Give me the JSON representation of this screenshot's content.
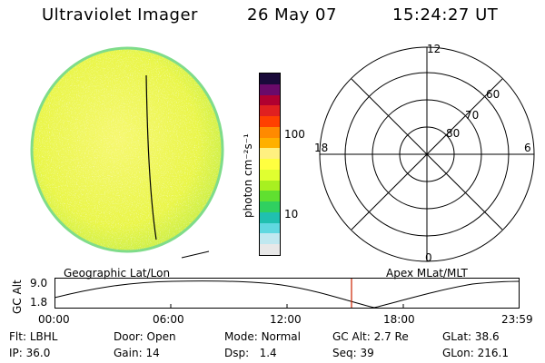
{
  "header": {
    "instrument": "Ultraviolet Imager",
    "date": "26 May 07",
    "time": "15:24:27 UT"
  },
  "colorbar": {
    "unit_label": "photon cm⁻²s⁻¹",
    "tick_100": "100",
    "tick_10": "10",
    "colors_top_to_bottom": [
      "#1a0a3a",
      "#6a0a6a",
      "#b00030",
      "#e02020",
      "#ff4000",
      "#ff8a00",
      "#ffb000",
      "#fff080",
      "#ffff40",
      "#e0ff30",
      "#a8f020",
      "#60e030",
      "#30d060",
      "#20c0b0",
      "#60d8e0",
      "#c0e8f0",
      "#e8e8e8"
    ]
  },
  "earth_disk": {
    "label": "Geographic Lat/Lon",
    "fill_color": "#e6f540",
    "edge_color": "#9be06a"
  },
  "polar_plot": {
    "label": "Apex MLat/MLT",
    "mlt_labels": {
      "top": "12",
      "right": "6",
      "bottom": "0",
      "left": "18"
    },
    "mlat_labels": [
      "60",
      "70",
      "80"
    ]
  },
  "altitude_plot": {
    "ylabel": "GC Alt",
    "ymax_label": "9.0",
    "ymin_label": "1.8",
    "x_ticks": [
      "00:00",
      "06:00",
      "12:00",
      "18:00",
      "23:59"
    ],
    "marker_color": "#cc2200"
  },
  "status": {
    "flt_label": "Flt:",
    "flt_value": "LBHL",
    "ip_label": "IP:",
    "ip_value": "36.0",
    "door_label": "Door:",
    "door_value": "Open",
    "gain_label": "Gain:",
    "gain_value": "14",
    "mode_label": "Mode:",
    "mode_value": "Normal",
    "dsp_label": "Dsp:",
    "dsp_value": "1.4",
    "gcalt_label": "GC Alt:",
    "gcalt_value": "2.7 Re",
    "seq_label": "Seq:",
    "seq_value": "39",
    "glat_label": "GLat:",
    "glat_value": "38.6",
    "glon_label": "GLon:",
    "glon_value": "216.1"
  }
}
